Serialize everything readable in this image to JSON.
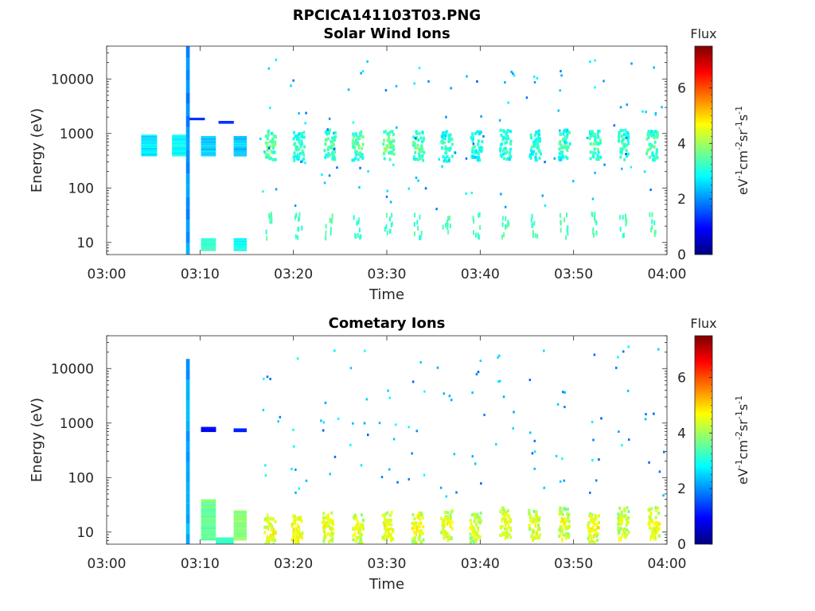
{
  "figure": {
    "title": "RPCICA141103T03.PNG"
  },
  "chart_data": [
    {
      "type": "heatmap",
      "title": "Solar Wind Ions",
      "xlabel": "Time",
      "ylabel": "Energy (eV)",
      "x_ticks": [
        "03:00",
        "03:10",
        "03:20",
        "03:30",
        "03:40",
        "03:50",
        "04:00"
      ],
      "xlim_minutes": [
        0,
        60
      ],
      "y_scale": "log",
      "y_ticks": [
        10,
        100,
        1000,
        10000
      ],
      "y_tick_labels": [
        "10",
        "100",
        "1000",
        "10000"
      ],
      "ylim": [
        6,
        40000
      ],
      "colorbar": {
        "title": "Flux",
        "label": "eV-1cm-2sr-1s-1",
        "ticks": [
          0,
          2,
          4,
          6
        ],
        "range": [
          0,
          7.5
        ],
        "colormap": "jet"
      },
      "blocks": [
        {
          "t0": 3.7,
          "t1": 5.4,
          "e0": 380,
          "e1": 950,
          "v": 2.6
        },
        {
          "t0": 7.0,
          "t1": 8.5,
          "e0": 380,
          "e1": 950,
          "v": 2.8
        },
        {
          "t0": 8.5,
          "t1": 8.9,
          "e0": 6,
          "e1": 40000,
          "v": 2.0
        },
        {
          "t0": 8.9,
          "t1": 10.5,
          "e0": 1800,
          "e1": 1950,
          "v": 1.3
        },
        {
          "t0": 12.0,
          "t1": 13.6,
          "e0": 1550,
          "e1": 1700,
          "v": 1.3
        },
        {
          "t0": 10.1,
          "t1": 11.7,
          "e0": 380,
          "e1": 900,
          "v": 2.4
        },
        {
          "t0": 13.6,
          "t1": 15.0,
          "e0": 380,
          "e1": 900,
          "v": 2.4
        },
        {
          "t0": 10.1,
          "t1": 11.7,
          "e0": 7,
          "e1": 12,
          "v": 3.2
        },
        {
          "t0": 13.6,
          "t1": 15.0,
          "e0": 7,
          "e1": 12,
          "v": 2.9
        }
      ],
      "bursts": [
        {
          "t": 17.4,
          "e": 600,
          "v": 3.6
        },
        {
          "t": 20.5,
          "e": 580,
          "v": 3.3
        },
        {
          "t": 23.8,
          "e": 620,
          "v": 3.4
        },
        {
          "t": 26.8,
          "e": 600,
          "v": 3.5
        },
        {
          "t": 30.1,
          "e": 620,
          "v": 3.7
        },
        {
          "t": 33.3,
          "e": 600,
          "v": 3.5
        },
        {
          "t": 36.3,
          "e": 580,
          "v": 3.2
        },
        {
          "t": 39.5,
          "e": 600,
          "v": 3.2
        },
        {
          "t": 42.6,
          "e": 620,
          "v": 3.3
        },
        {
          "t": 45.8,
          "e": 600,
          "v": 3.2
        },
        {
          "t": 48.9,
          "e": 620,
          "v": 3.3
        },
        {
          "t": 52.2,
          "e": 600,
          "v": 3.4
        },
        {
          "t": 55.2,
          "e": 620,
          "v": 3.4
        },
        {
          "t": 58.3,
          "e": 600,
          "v": 3.5
        }
      ]
    },
    {
      "type": "heatmap",
      "title": "Cometary Ions",
      "xlabel": "Time",
      "ylabel": "Energy (eV)",
      "x_ticks": [
        "03:00",
        "03:10",
        "03:20",
        "03:30",
        "03:40",
        "03:50",
        "04:00"
      ],
      "xlim_minutes": [
        0,
        60
      ],
      "y_scale": "log",
      "y_ticks": [
        10,
        100,
        1000,
        10000
      ],
      "y_tick_labels": [
        "10",
        "100",
        "1000",
        "10000"
      ],
      "ylim": [
        6,
        40000
      ],
      "colorbar": {
        "title": "Flux",
        "label": "eV-1cm-2sr-1s-1",
        "ticks": [
          0,
          2,
          4,
          6
        ],
        "range": [
          0,
          7.5
        ],
        "colormap": "jet"
      },
      "blocks": [
        {
          "t0": 8.5,
          "t1": 8.9,
          "e0": 6,
          "e1": 15000,
          "v": 2.2
        },
        {
          "t0": 10.1,
          "t1": 11.7,
          "e0": 700,
          "e1": 850,
          "v": 1.0
        },
        {
          "t0": 13.6,
          "t1": 15.0,
          "e0": 700,
          "e1": 800,
          "v": 1.2
        },
        {
          "t0": 10.1,
          "t1": 11.7,
          "e0": 7,
          "e1": 40,
          "v": 3.6
        },
        {
          "t0": 11.7,
          "t1": 13.6,
          "e0": 6,
          "e1": 8,
          "v": 3.2
        },
        {
          "t0": 13.6,
          "t1": 15.0,
          "e0": 7,
          "e1": 25,
          "v": 3.8
        }
      ],
      "bursts": [
        {
          "t": 17.4,
          "e": 10,
          "v": 4.6
        },
        {
          "t": 20.3,
          "e": 11,
          "v": 4.7
        },
        {
          "t": 23.6,
          "e": 12,
          "v": 4.6
        },
        {
          "t": 26.8,
          "e": 11,
          "v": 4.5
        },
        {
          "t": 30.0,
          "e": 13,
          "v": 4.7
        },
        {
          "t": 33.2,
          "e": 12,
          "v": 4.6
        },
        {
          "t": 36.3,
          "e": 14,
          "v": 4.5
        },
        {
          "t": 39.4,
          "e": 12,
          "v": 4.4
        },
        {
          "t": 42.6,
          "e": 15,
          "v": 4.5
        },
        {
          "t": 45.7,
          "e": 14,
          "v": 4.4
        },
        {
          "t": 48.9,
          "e": 15,
          "v": 4.3
        },
        {
          "t": 52.0,
          "e": 12,
          "v": 4.6
        },
        {
          "t": 55.2,
          "e": 16,
          "v": 4.3
        },
        {
          "t": 58.5,
          "e": 15,
          "v": 4.6
        }
      ]
    }
  ]
}
